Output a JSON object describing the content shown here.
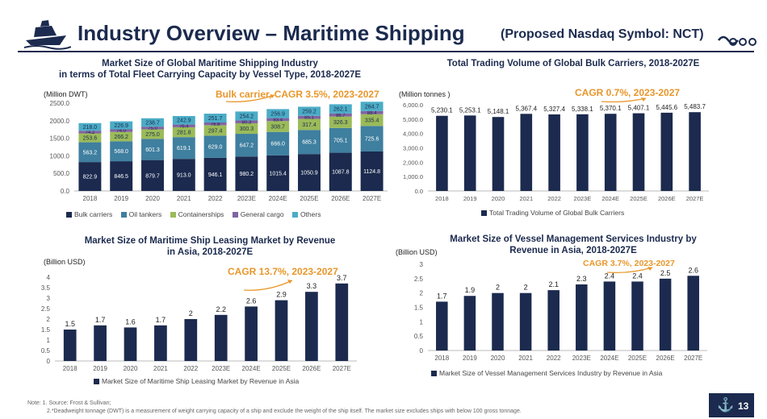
{
  "header": {
    "title": "Industry Overview – Maritime Shipping",
    "symbol": "(Proposed Nasdaq Symbol: NCT)",
    "page_number": "13"
  },
  "notes": {
    "line1": "Note: 1. Source: Frost & Sullivan;",
    "line2": "2.*Deadweight tonnage (DWT) is a measurement of weight carrying capacity of a ship and exclude the weight of the ship itself. The market size excludes ships with below 100 gross tonnage."
  },
  "colors": {
    "navy": "#1b2a4e",
    "oil_tankers": "#3f7f9f",
    "containerships": "#9bbb59",
    "general_cargo": "#8064a2",
    "others": "#4bacc6",
    "cagr": "#e8972b"
  },
  "chart_data": [
    {
      "id": "fleet",
      "type": "bar",
      "stacked": true,
      "title_line1": "Market Size of Global Maritime Shipping Industry",
      "title_line2": "in terms of Total Fleet Carrying Capacity by Vessel Type, 2018-2027E",
      "unit": "(Million DWT)",
      "cagr": "Bulk carrier, CAGR 3.5%, 2023-2027",
      "categories": [
        "2018",
        "2019",
        "2020",
        "2021",
        "2022",
        "2023E",
        "2024E",
        "2025E",
        "2026E",
        "2027E"
      ],
      "ylim": [
        0,
        2500
      ],
      "yticks": [
        "0.0",
        "500.0",
        "1000.0",
        "1500.0",
        "2000.0",
        "2500.0"
      ],
      "series": [
        {
          "name": "Bulk carriers",
          "values": [
            822.9,
            846.5,
            879.7,
            913.0,
            946.1,
            980.2,
            1015.4,
            1050.9,
            1087.8,
            1124.8
          ],
          "labels": [
            "822.9",
            "846.5",
            "879.7",
            "913.0",
            "946.1",
            "980.2",
            "1015.4",
            "1050.9",
            "1087.8",
            "1124.8"
          ]
        },
        {
          "name": "Oil tankers",
          "values": [
            563.2,
            568.0,
            601.3,
            619.1,
            629.0,
            647.2,
            666.0,
            685.3,
            705.1,
            725.6
          ],
          "labels": [
            "563.2",
            "568.0",
            "601.3",
            "619.1",
            "629.0",
            "647.2",
            "666.0",
            "685.3",
            "705.1",
            "725.6"
          ]
        },
        {
          "name": "Containerships",
          "values": [
            253.6,
            266.2,
            275.0,
            281.8,
            297.4,
            300.3,
            308.7,
            317.4,
            326.3,
            335.4
          ],
          "labels": [
            "253.6",
            "266.2",
            "275.0",
            "281.8",
            "297.4",
            "300.3",
            "308.7",
            "317.4",
            "326.3",
            "335.4"
          ]
        },
        {
          "name": "General cargo",
          "values": [
            74.2,
            74.0,
            75.0,
            76.4,
            76.8,
            80.3,
            83.4,
            85.1,
            86.7,
            88.4
          ],
          "labels": [
            "74.2",
            "74.0",
            "75.0",
            "76.4",
            "76.8",
            "80.3",
            "83.4",
            "85.1",
            "86.7",
            "88.4"
          ]
        },
        {
          "name": "Others",
          "values": [
            218.0,
            226.9,
            238.7,
            242.9,
            251.7,
            254.2,
            256.9,
            259.2,
            262.1,
            264.7
          ],
          "labels": [
            "218.0",
            "226.9",
            "238.7",
            "242.9",
            "251.7",
            "254.2",
            "256.9",
            "259.2",
            "262.1",
            "264.7"
          ]
        }
      ]
    },
    {
      "id": "bulk",
      "type": "bar",
      "title": "Total Trading Volume of Global Bulk Carriers, 2018-2027E",
      "unit": "(Million tonnes )",
      "cagr": "CAGR 0.7%, 2023-2027",
      "categories": [
        "2018",
        "2019",
        "2020",
        "2021",
        "2022",
        "2023E",
        "2024E",
        "2025E",
        "2026E",
        "2027E"
      ],
      "ylim": [
        0,
        6000
      ],
      "yticks": [
        "0.0",
        "1,000.0",
        "2,000.0",
        "3,000.0",
        "4,000.0",
        "5,000.0",
        "6,000.0"
      ],
      "series": [
        {
          "name": "Total Trading Volume of Global Bulk Carriers",
          "values": [
            5230.1,
            5253.1,
            5148.1,
            5367.4,
            5327.4,
            5338.1,
            5370.1,
            5407.1,
            5445.6,
            5483.7
          ],
          "labels": [
            "5,230.1",
            "5,253.1",
            "5,148.1",
            "5,367.4",
            "5,327.4",
            "5,338.1",
            "5,370.1",
            "5,407.1",
            "5,445.6",
            "5,483.7"
          ]
        }
      ]
    },
    {
      "id": "leasing",
      "type": "bar",
      "title_line1": "Market Size of Maritime Ship Leasing Market by Revenue",
      "title_line2": "in Asia, 2018-2027E",
      "unit": "(Billion USD)",
      "cagr": "CAGR 13.7%, 2023-2027",
      "categories": [
        "2018",
        "2019",
        "2020",
        "2021",
        "2022",
        "2023E",
        "2024E",
        "2025E",
        "2026E",
        "2027E"
      ],
      "ylim": [
        0,
        4
      ],
      "yticks": [
        "0",
        "0.5",
        "1",
        "1.5",
        "2",
        "2.5",
        "3",
        "3.5",
        "4"
      ],
      "series": [
        {
          "name": "Market Size of Maritime Ship Leasing Market by Revenue in Asia",
          "values": [
            1.5,
            1.7,
            1.6,
            1.7,
            2,
            2.2,
            2.6,
            2.9,
            3.3,
            3.7
          ],
          "labels": [
            "1.5",
            "1.7",
            "1.6",
            "1.7",
            "2",
            "2.2",
            "2.6",
            "2.9",
            "3.3",
            "3.7"
          ]
        }
      ]
    },
    {
      "id": "vessel",
      "type": "bar",
      "title_line1": "Market Size of Vessel Management Services Industry by",
      "title_line2": "Revenue in Asia, 2018-2027E",
      "unit": "(Billion USD)",
      "cagr": "CAGR 3.7%, 2023-2027",
      "categories": [
        "2018",
        "2019",
        "2020",
        "2021",
        "2022",
        "2023E",
        "2024E",
        "2025E",
        "2026E",
        "2027E"
      ],
      "ylim": [
        0,
        3
      ],
      "yticks": [
        "0",
        "0.5",
        "1",
        "1.5",
        "2",
        "2.5",
        "3"
      ],
      "series": [
        {
          "name": "Market Size of Vessel Management Services Industry by Revenue in Asia",
          "values": [
            1.7,
            1.9,
            2,
            2,
            2.1,
            2.3,
            2.4,
            2.4,
            2.5,
            2.6
          ],
          "labels": [
            "1.7",
            "1.9",
            "2",
            "2",
            "2.1",
            "2.3",
            "2.4",
            "2.4",
            "2.5",
            "2.6"
          ]
        }
      ]
    }
  ]
}
